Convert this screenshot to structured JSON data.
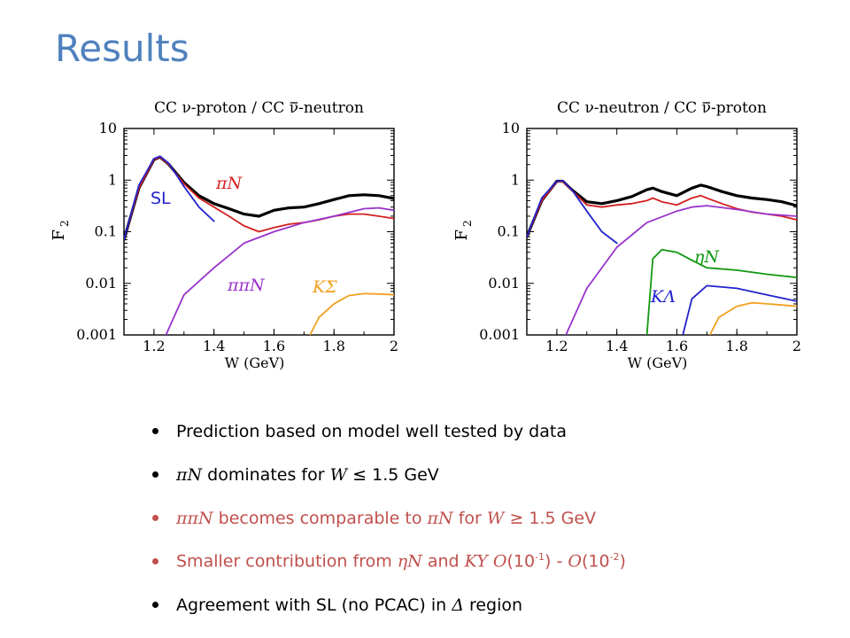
{
  "title": "Results",
  "colors": {
    "title": "#4f81bd",
    "highlight": "#c0504d",
    "black": "#000000",
    "red": "#d42020",
    "blue": "#2222cc",
    "purple": "#9933cc",
    "orange": "#f0a020",
    "green": "#119911"
  },
  "chart_data": [
    {
      "type": "line",
      "title_parts": [
        "CC ",
        "ν",
        "-proton / CC ",
        "ν",
        "-neutron"
      ],
      "xlabel": "W (GeV)",
      "ylabel": "F",
      "ylabel_sub": "2",
      "xlim": [
        1.1,
        2.0
      ],
      "ylim": [
        0.001,
        10
      ],
      "yscale": "log",
      "xticks": [
        "1.2",
        "1.4",
        "1.6",
        "1.8",
        "2"
      ],
      "yticks": [
        "0.001",
        "0.01",
        "0.1",
        "1",
        "10"
      ],
      "series": [
        {
          "name": "",
          "color": "#000000",
          "x": [
            1.1,
            1.15,
            1.2,
            1.22,
            1.25,
            1.3,
            1.35,
            1.4,
            1.45,
            1.5,
            1.55,
            1.6,
            1.65,
            1.7,
            1.75,
            1.8,
            1.85,
            1.9,
            1.95,
            2.0
          ],
          "y": [
            0.07,
            0.7,
            2.5,
            2.8,
            2.0,
            0.9,
            0.5,
            0.35,
            0.28,
            0.22,
            0.2,
            0.26,
            0.29,
            0.3,
            0.35,
            0.42,
            0.5,
            0.52,
            0.5,
            0.44
          ]
        },
        {
          "name": "πN",
          "color": "#d42020",
          "x": [
            1.1,
            1.15,
            1.2,
            1.22,
            1.25,
            1.3,
            1.35,
            1.4,
            1.45,
            1.5,
            1.55,
            1.6,
            1.65,
            1.7,
            1.75,
            1.8,
            1.85,
            1.9,
            1.95,
            2.0
          ],
          "y": [
            0.07,
            0.7,
            2.5,
            2.8,
            2.0,
            0.85,
            0.45,
            0.3,
            0.2,
            0.13,
            0.1,
            0.12,
            0.14,
            0.15,
            0.17,
            0.2,
            0.22,
            0.22,
            0.2,
            0.18
          ]
        },
        {
          "name": "SL",
          "color": "#2222cc",
          "x": [
            1.1,
            1.15,
            1.2,
            1.22,
            1.25,
            1.3,
            1.35,
            1.4
          ],
          "y": [
            0.07,
            0.8,
            2.6,
            2.9,
            2.1,
            0.75,
            0.3,
            0.16
          ]
        },
        {
          "name": "ππN",
          "color": "#9933cc",
          "x": [
            1.24,
            1.3,
            1.4,
            1.5,
            1.6,
            1.7,
            1.8,
            1.9,
            1.95,
            2.0
          ],
          "y": [
            0.001,
            0.006,
            0.02,
            0.06,
            0.1,
            0.15,
            0.2,
            0.28,
            0.29,
            0.26
          ]
        },
        {
          "name": "KΣ",
          "color": "#f0a020",
          "x": [
            1.72,
            1.75,
            1.8,
            1.85,
            1.9,
            1.95,
            2.0
          ],
          "y": [
            0.001,
            0.0022,
            0.004,
            0.0058,
            0.0063,
            0.0062,
            0.006
          ]
        }
      ],
      "annotations": [
        {
          "text": "SL",
          "color": "#2222cc",
          "italic": false
        },
        {
          "text": "πN",
          "color": "#d42020",
          "italic": true
        },
        {
          "text": "ππN",
          "color": "#9933cc",
          "italic": true
        },
        {
          "text": "KΣ",
          "color": "#f0a020",
          "italic": true
        }
      ]
    },
    {
      "type": "line",
      "title_parts": [
        "CC ",
        "ν",
        "-neutron / CC ",
        "ν",
        "-proton"
      ],
      "xlabel": "W (GeV)",
      "ylabel": "F",
      "ylabel_sub": "2",
      "xlim": [
        1.1,
        2.0
      ],
      "ylim": [
        0.001,
        10
      ],
      "yscale": "log",
      "xticks": [
        "1.2",
        "1.4",
        "1.6",
        "1.8",
        "2"
      ],
      "yticks": [
        "0.001",
        "0.01",
        "0.1",
        "1",
        "10"
      ],
      "series": [
        {
          "name": "",
          "color": "#000000",
          "x": [
            1.1,
            1.15,
            1.2,
            1.22,
            1.25,
            1.3,
            1.35,
            1.4,
            1.45,
            1.5,
            1.52,
            1.55,
            1.6,
            1.65,
            1.68,
            1.7,
            1.75,
            1.8,
            1.85,
            1.9,
            1.95,
            2.0
          ],
          "y": [
            0.08,
            0.4,
            0.95,
            0.95,
            0.65,
            0.38,
            0.35,
            0.4,
            0.48,
            0.65,
            0.7,
            0.6,
            0.5,
            0.7,
            0.8,
            0.75,
            0.6,
            0.5,
            0.45,
            0.42,
            0.38,
            0.32
          ]
        },
        {
          "name": "",
          "color": "#d42020",
          "x": [
            1.1,
            1.15,
            1.2,
            1.22,
            1.25,
            1.3,
            1.35,
            1.4,
            1.45,
            1.5,
            1.52,
            1.55,
            1.6,
            1.65,
            1.68,
            1.7,
            1.75,
            1.8,
            1.85,
            1.9,
            1.95,
            2.0
          ],
          "y": [
            0.08,
            0.4,
            0.93,
            0.93,
            0.63,
            0.33,
            0.3,
            0.33,
            0.35,
            0.4,
            0.45,
            0.38,
            0.33,
            0.45,
            0.5,
            0.45,
            0.35,
            0.28,
            0.24,
            0.22,
            0.2,
            0.17
          ]
        },
        {
          "name": "",
          "color": "#2222cc",
          "x": [
            1.1,
            1.15,
            1.2,
            1.22,
            1.25,
            1.3,
            1.35,
            1.4
          ],
          "y": [
            0.08,
            0.45,
            0.95,
            0.97,
            0.65,
            0.25,
            0.1,
            0.06
          ]
        },
        {
          "name": "",
          "color": "#9933cc",
          "x": [
            1.23,
            1.3,
            1.4,
            1.5,
            1.6,
            1.65,
            1.7,
            1.8,
            1.9,
            2.0
          ],
          "y": [
            0.001,
            0.008,
            0.05,
            0.15,
            0.25,
            0.3,
            0.32,
            0.27,
            0.22,
            0.2
          ]
        },
        {
          "name": "ηN",
          "color": "#119911",
          "x": [
            1.5,
            1.52,
            1.55,
            1.6,
            1.65,
            1.7,
            1.8,
            1.9,
            2.0
          ],
          "y": [
            0.001,
            0.03,
            0.045,
            0.04,
            0.028,
            0.02,
            0.018,
            0.015,
            0.013
          ]
        },
        {
          "name": "KΛ",
          "color": "#2222cc",
          "x": [
            1.62,
            1.65,
            1.7,
            1.8,
            1.9,
            2.0
          ],
          "y": [
            0.001,
            0.005,
            0.009,
            0.008,
            0.006,
            0.0045
          ]
        },
        {
          "name": "",
          "color": "#f0a020",
          "x": [
            1.71,
            1.74,
            1.8,
            1.85,
            1.9,
            1.95,
            2.0
          ],
          "y": [
            0.001,
            0.0022,
            0.0036,
            0.0042,
            0.004,
            0.0038,
            0.0036
          ]
        }
      ],
      "annotations": [
        {
          "text": "ηN",
          "color": "#119911",
          "italic": true
        },
        {
          "text": "KΛ",
          "color": "#2222cc",
          "italic": true
        }
      ]
    }
  ],
  "bullets": [
    {
      "color": "dark",
      "parts": [
        {
          "t": "Prediction based on model well tested by data",
          "s": false
        }
      ]
    },
    {
      "color": "dark",
      "parts": [
        {
          "t": "πN",
          "s": true
        },
        {
          "t": " dominates for ",
          "s": false
        },
        {
          "t": "W",
          "s": true
        },
        {
          "t": " ≤ 1.5 GeV",
          "s": false
        }
      ]
    },
    {
      "color": "red",
      "parts": [
        {
          "t": "ππN",
          "s": true
        },
        {
          "t": " becomes comparable to ",
          "s": false
        },
        {
          "t": "πN",
          "s": true
        },
        {
          "t": "  for ",
          "s": false
        },
        {
          "t": "W",
          "s": true
        },
        {
          "t": " ≥ 1.5 GeV",
          "s": false
        }
      ]
    },
    {
      "color": "red",
      "parts": [
        {
          "t": "Smaller contribution from ",
          "s": false
        },
        {
          "t": "ηN",
          "s": true
        },
        {
          "t": " and ",
          "s": false
        },
        {
          "t": "KY",
          "s": true
        },
        {
          "t": " ",
          "s": false
        },
        {
          "t": "O",
          "s": true
        },
        {
          "t": "(10",
          "s": false
        },
        {
          "t": "-1",
          "sup": true
        },
        {
          "t": ") - ",
          "s": false
        },
        {
          "t": "O",
          "s": true
        },
        {
          "t": "(10",
          "s": false
        },
        {
          "t": "-2",
          "sup": true
        },
        {
          "t": ")",
          "s": false
        }
      ]
    },
    {
      "color": "dark",
      "parts": [
        {
          "t": "Agreement with SL (no PCAC) in ",
          "s": false
        },
        {
          "t": "Δ",
          "s": true
        },
        {
          "t": " region",
          "s": false
        }
      ]
    }
  ]
}
